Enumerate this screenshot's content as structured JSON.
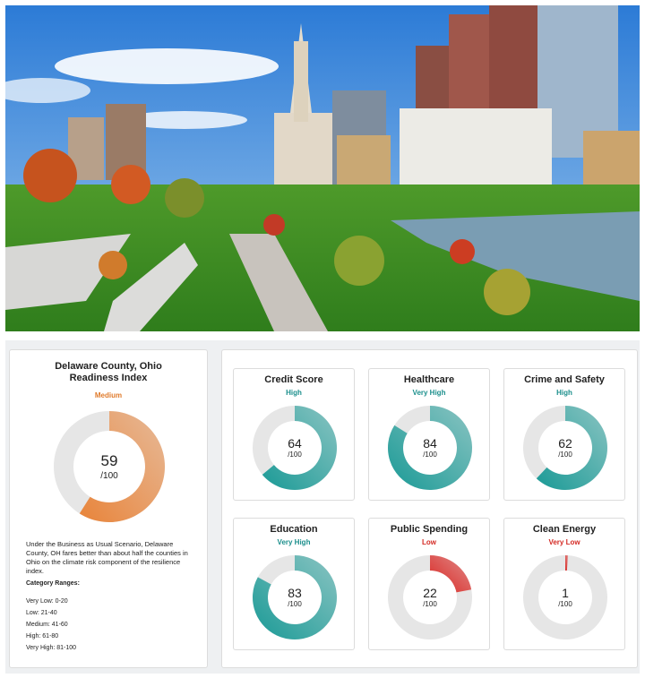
{
  "summary": {
    "title": "Delaware County, Ohio Readiness Index",
    "level": "Medium",
    "level_color": "#e07b2c",
    "score": 59,
    "max": {
      "value": 100,
      "label": "/100"
    },
    "color": "#e8843a",
    "description": "Under the Business as Usual Scenario, Delaware County, OH fares better than about half the counties in Ohio on the climate risk component of the resilience index.",
    "ranges_title": "Category Ranges:",
    "ranges": [
      "Very Low: 0-20",
      "Low: 21-40",
      "Medium: 41-60",
      "High: 61-80",
      "Very High: 81-100"
    ]
  },
  "cards": [
    {
      "title": "Credit Score",
      "level": "High",
      "level_color": "#1b8f8c",
      "score": 64,
      "max": {
        "value": 100,
        "label": "/100"
      },
      "color": "#1a9a96"
    },
    {
      "title": "Healthcare",
      "level": "Very High",
      "level_color": "#1b8f8c",
      "score": 84,
      "max": {
        "value": 100,
        "label": "/100"
      },
      "color": "#1a9a96"
    },
    {
      "title": "Crime and Safety",
      "level": "High",
      "level_color": "#1b8f8c",
      "score": 62,
      "max": {
        "value": 100,
        "label": "/100"
      },
      "color": "#1a9a96"
    },
    {
      "title": "Education",
      "level": "Very High",
      "level_color": "#1b8f8c",
      "score": 83,
      "max": {
        "value": 100,
        "label": "/100"
      },
      "color": "#1a9a96"
    },
    {
      "title": "Public Spending",
      "level": "Low",
      "level_color": "#d42a24",
      "score": 22,
      "max": {
        "value": 100,
        "label": "/100"
      },
      "color": "#d9231f"
    },
    {
      "title": "Clean Energy",
      "level": "Very Low",
      "level_color": "#d42a24",
      "score": 1,
      "max": {
        "value": 100,
        "label": "/100"
      },
      "color": "#d9231f"
    }
  ]
}
